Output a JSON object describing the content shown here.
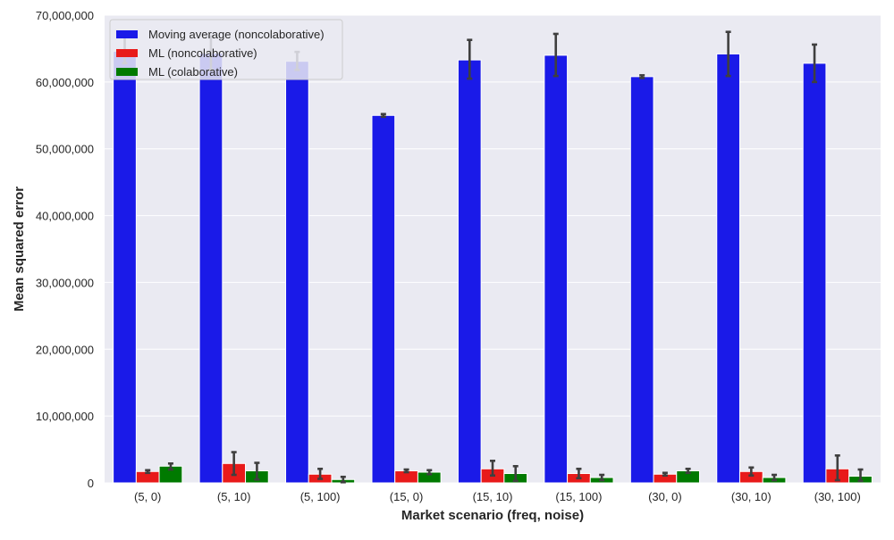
{
  "chart_data": {
    "type": "bar",
    "xlabel": "Market scenario (freq, noise)",
    "ylabel": "Mean squared error",
    "ylim": [
      0,
      70000000
    ],
    "y_ticks": [
      0,
      10000000,
      20000000,
      30000000,
      40000000,
      50000000,
      60000000,
      70000000
    ],
    "y_tick_labels": [
      "0",
      "10,000,000",
      "20,000,000",
      "30,000,000",
      "40,000,000",
      "50,000,000",
      "60,000,000",
      "70,000,000"
    ],
    "grid": true,
    "legend_position": "top-left",
    "categories": [
      "(5, 0)",
      "(5, 10)",
      "(5, 100)",
      "(15, 0)",
      "(15, 10)",
      "(15, 100)",
      "(30, 0)",
      "(30, 10)",
      "(30, 100)"
    ],
    "series": [
      {
        "name": "Moving average (noncolaborative)",
        "color": "#1a1ae8",
        "values": [
          64600000,
          64300000,
          63100000,
          55000000,
          63300000,
          64000000,
          60800000,
          64200000,
          62800000
        ],
        "error_low": [
          62800000,
          61800000,
          61800000,
          54800000,
          60500000,
          60900000,
          60600000,
          60900000,
          60000000
        ],
        "error_high": [
          66700000,
          66800000,
          64500000,
          55200000,
          66300000,
          67200000,
          61000000,
          67500000,
          65600000
        ]
      },
      {
        "name": "ML (noncolaborative)",
        "color": "#e81a1a",
        "values": [
          1700000,
          2900000,
          1300000,
          1800000,
          2100000,
          1400000,
          1300000,
          1700000,
          2100000
        ],
        "error_low": [
          1500000,
          1200000,
          600000,
          1600000,
          1100000,
          700000,
          1100000,
          1100000,
          400000
        ],
        "error_high": [
          1900000,
          4600000,
          2100000,
          2000000,
          3300000,
          2100000,
          1500000,
          2300000,
          4100000
        ]
      },
      {
        "name": "ML (colaborative)",
        "color": "#007a00",
        "values": [
          2500000,
          1800000,
          500000,
          1600000,
          1400000,
          800000,
          1800000,
          800000,
          1000000
        ],
        "error_low": [
          2000000,
          500000,
          100000,
          1300000,
          300000,
          400000,
          1500000,
          400000,
          300000
        ],
        "error_high": [
          2900000,
          3000000,
          900000,
          1900000,
          2500000,
          1200000,
          2100000,
          1200000,
          2000000
        ]
      }
    ]
  }
}
